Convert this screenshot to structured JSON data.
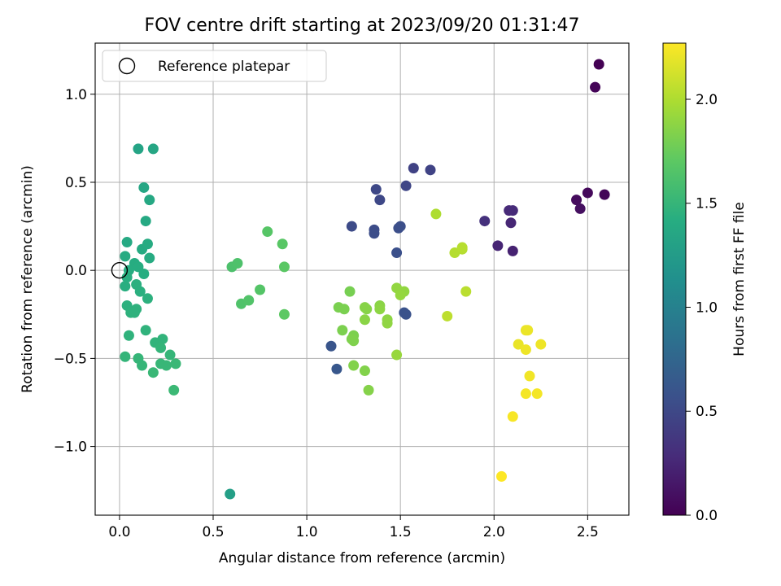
{
  "chart_data": {
    "type": "scatter",
    "title": "FOV centre drift starting at 2023/09/20 01:31:47",
    "xlabel": "Angular distance from reference (arcmin)",
    "ylabel": "Rotation from reference (arcmin)",
    "xlim": [
      -0.13,
      2.72
    ],
    "ylim": [
      -1.39,
      1.29
    ],
    "x_ticks": [
      0.0,
      0.5,
      1.0,
      1.5,
      2.0,
      2.5
    ],
    "x_tick_labels": [
      "0.0",
      "0.5",
      "1.0",
      "1.5",
      "2.0",
      "2.5"
    ],
    "y_ticks": [
      -1.0,
      -0.5,
      0.0,
      0.5,
      1.0
    ],
    "y_tick_labels": [
      "−1.0",
      "−0.5",
      "0.0",
      "0.5",
      "1.0"
    ],
    "grid": true,
    "legend": {
      "placement": "top-left",
      "entries": [
        "Reference platepar"
      ]
    },
    "reference_point": {
      "x": 0.0,
      "y": 0.0
    },
    "colorbar": {
      "label": "Hours from first FF file",
      "colormap": "viridis",
      "range": [
        0.0,
        2.27
      ],
      "ticks": [
        0.0,
        0.5,
        1.0,
        1.5,
        2.0
      ],
      "tick_labels": [
        "0.0",
        "0.5",
        "1.0",
        "1.5",
        "2.0"
      ]
    },
    "points": [
      {
        "x": 2.56,
        "y": 1.17,
        "c": 0.0
      },
      {
        "x": 2.54,
        "y": 1.04,
        "c": 0.02
      },
      {
        "x": 2.59,
        "y": 0.43,
        "c": 0.03
      },
      {
        "x": 2.5,
        "y": 0.44,
        "c": 0.05
      },
      {
        "x": 2.44,
        "y": 0.4,
        "c": 0.07
      },
      {
        "x": 2.46,
        "y": 0.35,
        "c": 0.09
      },
      {
        "x": 2.1,
        "y": 0.11,
        "c": 0.22
      },
      {
        "x": 2.02,
        "y": 0.14,
        "c": 0.24
      },
      {
        "x": 2.09,
        "y": 0.27,
        "c": 0.25
      },
      {
        "x": 2.08,
        "y": 0.34,
        "c": 0.27
      },
      {
        "x": 2.1,
        "y": 0.34,
        "c": 0.28
      },
      {
        "x": 1.95,
        "y": 0.28,
        "c": 0.32
      },
      {
        "x": 1.57,
        "y": 0.58,
        "c": 0.45
      },
      {
        "x": 1.66,
        "y": 0.57,
        "c": 0.46
      },
      {
        "x": 1.53,
        "y": 0.48,
        "c": 0.48
      },
      {
        "x": 1.37,
        "y": 0.46,
        "c": 0.5
      },
      {
        "x": 1.39,
        "y": 0.4,
        "c": 0.5
      },
      {
        "x": 1.24,
        "y": 0.25,
        "c": 0.52
      },
      {
        "x": 1.36,
        "y": 0.23,
        "c": 0.53
      },
      {
        "x": 1.36,
        "y": 0.21,
        "c": 0.54
      },
      {
        "x": 1.49,
        "y": 0.24,
        "c": 0.55
      },
      {
        "x": 1.5,
        "y": 0.25,
        "c": 0.55
      },
      {
        "x": 1.48,
        "y": 0.1,
        "c": 0.56
      },
      {
        "x": 1.52,
        "y": -0.24,
        "c": 0.58
      },
      {
        "x": 1.53,
        "y": -0.25,
        "c": 0.58
      },
      {
        "x": 1.13,
        "y": -0.43,
        "c": 0.6
      },
      {
        "x": 1.16,
        "y": -0.56,
        "c": 0.62
      },
      {
        "x": 0.59,
        "y": -1.27,
        "c": 1.28
      },
      {
        "x": 0.1,
        "y": 0.69,
        "c": 1.33
      },
      {
        "x": 0.18,
        "y": 0.69,
        "c": 1.35
      },
      {
        "x": 0.13,
        "y": 0.47,
        "c": 1.35
      },
      {
        "x": 0.16,
        "y": 0.4,
        "c": 1.37
      },
      {
        "x": 0.14,
        "y": 0.28,
        "c": 1.38
      },
      {
        "x": 0.04,
        "y": 0.16,
        "c": 1.38
      },
      {
        "x": 0.12,
        "y": 0.12,
        "c": 1.39
      },
      {
        "x": 0.15,
        "y": 0.15,
        "c": 1.4
      },
      {
        "x": 0.16,
        "y": 0.07,
        "c": 1.4
      },
      {
        "x": 0.03,
        "y": 0.08,
        "c": 1.4
      },
      {
        "x": 0.08,
        "y": 0.04,
        "c": 1.41
      },
      {
        "x": 0.1,
        "y": 0.02,
        "c": 1.42
      },
      {
        "x": 0.05,
        "y": 0.0,
        "c": 1.42
      },
      {
        "x": 0.13,
        "y": -0.02,
        "c": 1.42
      },
      {
        "x": 0.04,
        "y": -0.04,
        "c": 1.43
      },
      {
        "x": 0.03,
        "y": -0.09,
        "c": 1.43
      },
      {
        "x": 0.09,
        "y": -0.08,
        "c": 1.44
      },
      {
        "x": 0.11,
        "y": -0.12,
        "c": 1.44
      },
      {
        "x": 0.15,
        "y": -0.16,
        "c": 1.45
      },
      {
        "x": 0.04,
        "y": -0.2,
        "c": 1.45
      },
      {
        "x": 0.09,
        "y": -0.22,
        "c": 1.46
      },
      {
        "x": 0.06,
        "y": -0.24,
        "c": 1.46
      },
      {
        "x": 0.08,
        "y": -0.24,
        "c": 1.46
      },
      {
        "x": 0.14,
        "y": -0.34,
        "c": 1.47
      },
      {
        "x": 0.05,
        "y": -0.37,
        "c": 1.47
      },
      {
        "x": 0.19,
        "y": -0.41,
        "c": 1.48
      },
      {
        "x": 0.23,
        "y": -0.39,
        "c": 1.48
      },
      {
        "x": 0.22,
        "y": -0.44,
        "c": 1.49
      },
      {
        "x": 0.03,
        "y": -0.49,
        "c": 1.49
      },
      {
        "x": 0.1,
        "y": -0.5,
        "c": 1.5
      },
      {
        "x": 0.27,
        "y": -0.48,
        "c": 1.5
      },
      {
        "x": 0.12,
        "y": -0.54,
        "c": 1.5
      },
      {
        "x": 0.22,
        "y": -0.53,
        "c": 1.51
      },
      {
        "x": 0.25,
        "y": -0.54,
        "c": 1.51
      },
      {
        "x": 0.3,
        "y": -0.53,
        "c": 1.52
      },
      {
        "x": 0.18,
        "y": -0.58,
        "c": 1.52
      },
      {
        "x": 0.29,
        "y": -0.68,
        "c": 1.53
      },
      {
        "x": 0.6,
        "y": 0.02,
        "c": 1.62
      },
      {
        "x": 0.63,
        "y": 0.04,
        "c": 1.63
      },
      {
        "x": 0.65,
        "y": -0.19,
        "c": 1.64
      },
      {
        "x": 0.69,
        "y": -0.17,
        "c": 1.65
      },
      {
        "x": 0.75,
        "y": -0.11,
        "c": 1.66
      },
      {
        "x": 0.79,
        "y": 0.22,
        "c": 1.67
      },
      {
        "x": 0.87,
        "y": 0.15,
        "c": 1.68
      },
      {
        "x": 0.88,
        "y": 0.02,
        "c": 1.69
      },
      {
        "x": 0.88,
        "y": -0.25,
        "c": 1.7
      },
      {
        "x": 1.23,
        "y": -0.12,
        "c": 1.8
      },
      {
        "x": 1.17,
        "y": -0.21,
        "c": 1.81
      },
      {
        "x": 1.2,
        "y": -0.22,
        "c": 1.81
      },
      {
        "x": 1.19,
        "y": -0.34,
        "c": 1.82
      },
      {
        "x": 1.25,
        "y": -0.37,
        "c": 1.82
      },
      {
        "x": 1.24,
        "y": -0.39,
        "c": 1.83
      },
      {
        "x": 1.25,
        "y": -0.4,
        "c": 1.83
      },
      {
        "x": 1.25,
        "y": -0.54,
        "c": 1.84
      },
      {
        "x": 1.31,
        "y": -0.57,
        "c": 1.84
      },
      {
        "x": 1.33,
        "y": -0.68,
        "c": 1.85
      },
      {
        "x": 1.31,
        "y": -0.21,
        "c": 1.86
      },
      {
        "x": 1.32,
        "y": -0.22,
        "c": 1.86
      },
      {
        "x": 1.31,
        "y": -0.28,
        "c": 1.87
      },
      {
        "x": 1.39,
        "y": -0.2,
        "c": 1.87
      },
      {
        "x": 1.39,
        "y": -0.22,
        "c": 1.88
      },
      {
        "x": 1.43,
        "y": -0.28,
        "c": 1.88
      },
      {
        "x": 1.43,
        "y": -0.3,
        "c": 1.89
      },
      {
        "x": 1.48,
        "y": -0.1,
        "c": 1.9
      },
      {
        "x": 1.52,
        "y": -0.12,
        "c": 1.9
      },
      {
        "x": 1.5,
        "y": -0.14,
        "c": 1.91
      },
      {
        "x": 1.48,
        "y": -0.48,
        "c": 1.92
      },
      {
        "x": 1.69,
        "y": 0.32,
        "c": 2.0
      },
      {
        "x": 1.79,
        "y": 0.1,
        "c": 2.02
      },
      {
        "x": 1.83,
        "y": 0.12,
        "c": 2.02
      },
      {
        "x": 1.83,
        "y": 0.13,
        "c": 2.03
      },
      {
        "x": 1.85,
        "y": -0.12,
        "c": 2.04
      },
      {
        "x": 1.75,
        "y": -0.26,
        "c": 2.05
      },
      {
        "x": 2.13,
        "y": -0.42,
        "c": 2.2
      },
      {
        "x": 2.17,
        "y": -0.34,
        "c": 2.21
      },
      {
        "x": 2.18,
        "y": -0.34,
        "c": 2.21
      },
      {
        "x": 2.17,
        "y": -0.45,
        "c": 2.22
      },
      {
        "x": 2.25,
        "y": -0.42,
        "c": 2.22
      },
      {
        "x": 2.19,
        "y": -0.6,
        "c": 2.23
      },
      {
        "x": 2.17,
        "y": -0.7,
        "c": 2.24
      },
      {
        "x": 2.23,
        "y": -0.7,
        "c": 2.24
      },
      {
        "x": 2.1,
        "y": -0.83,
        "c": 2.25
      },
      {
        "x": 2.04,
        "y": -1.17,
        "c": 2.27
      }
    ]
  }
}
